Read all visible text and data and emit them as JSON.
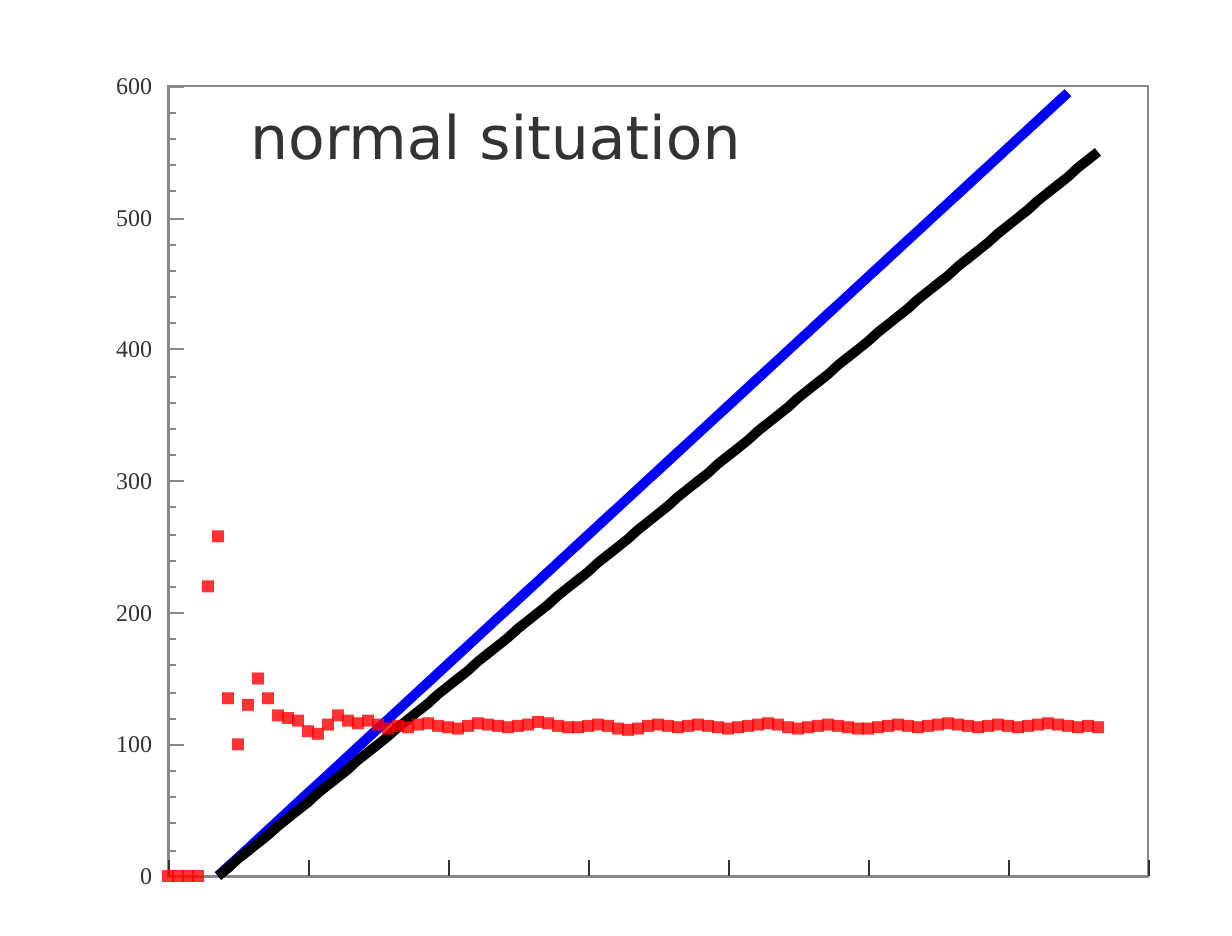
{
  "chart_data": {
    "type": "line",
    "annotations": [
      "normal situation"
    ],
    "categories": [
      null,
      null,
      null,
      null,
      null,
      null,
      null,
      null,
      null,
      null,
      null,
      null,
      null,
      null,
      null,
      null,
      null,
      null,
      null,
      null,
      null,
      null,
      null,
      null,
      null,
      null,
      null,
      null,
      null,
      null,
      null,
      null,
      null,
      null,
      null,
      null,
      null,
      null,
      null,
      null,
      null,
      null,
      null,
      null,
      null,
      null,
      null,
      null,
      null,
      null,
      null,
      null,
      null,
      null,
      null,
      null,
      null,
      null,
      null,
      null,
      null,
      null,
      null,
      null,
      null,
      null,
      null,
      null,
      null,
      null,
      null,
      null,
      null,
      null,
      null,
      null,
      null,
      null,
      null,
      null,
      null,
      null,
      null,
      null,
      null,
      null,
      null,
      null,
      null,
      null,
      null,
      null,
      null,
      null,
      null,
      null,
      null,
      null,
      null
    ],
    "series": [
      {
        "marker": "none",
        "color": "#0000ff",
        "values": [
          null,
          null,
          null,
          null,
          null,
          0,
          7,
          14,
          21,
          28,
          35,
          42,
          49,
          56,
          63,
          70,
          77,
          84,
          91,
          98,
          105,
          112,
          119,
          126,
          133,
          140,
          147,
          154,
          161,
          168,
          175,
          182,
          189,
          196,
          203,
          210,
          217,
          224,
          231,
          238,
          245,
          252,
          259,
          266,
          273,
          280,
          287,
          294,
          301,
          308,
          315,
          322,
          329,
          336,
          343,
          350,
          357,
          364,
          371,
          378,
          385,
          392,
          399,
          406,
          413,
          420,
          427,
          434,
          441,
          448,
          455,
          462,
          469,
          476,
          483,
          490,
          497,
          504,
          511,
          518,
          525,
          532,
          539,
          546,
          553,
          560,
          567,
          574,
          581,
          588,
          595,
          null,
          null,
          null,
          null,
          null,
          null,
          null,
          null
        ]
      },
      {
        "marker": "none",
        "color": "#000000",
        "values": [
          null,
          null,
          null,
          null,
          null,
          0,
          6,
          13,
          19,
          25,
          31,
          38,
          44,
          50,
          56,
          63,
          69,
          75,
          81,
          88,
          94,
          100,
          106,
          113,
          119,
          125,
          131,
          138,
          144,
          150,
          156,
          163,
          169,
          175,
          181,
          188,
          194,
          200,
          206,
          213,
          219,
          225,
          231,
          238,
          244,
          250,
          256,
          263,
          269,
          275,
          281,
          288,
          294,
          300,
          306,
          313,
          319,
          325,
          331,
          338,
          344,
          350,
          356,
          363,
          369,
          375,
          381,
          388,
          394,
          400,
          406,
          413,
          419,
          425,
          431,
          438,
          444,
          450,
          456,
          463,
          469,
          475,
          481,
          488,
          494,
          500,
          506,
          513,
          519,
          525,
          531,
          538,
          544,
          550,
          null,
          null,
          null,
          null,
          null
        ]
      },
      {
        "type": "scatter",
        "marker": "square",
        "color": "#ff0000",
        "values": [
          0,
          0,
          0,
          0,
          220,
          258,
          135,
          100,
          130,
          150,
          135,
          122,
          120,
          118,
          110,
          108,
          115,
          122,
          118,
          116,
          118,
          115,
          112,
          114,
          113,
          115,
          116,
          114,
          113,
          112,
          114,
          116,
          115,
          114,
          113,
          114,
          115,
          117,
          116,
          114,
          113,
          113,
          114,
          115,
          114,
          112,
          111,
          112,
          114,
          115,
          114,
          113,
          114,
          115,
          114,
          113,
          112,
          113,
          114,
          115,
          116,
          115,
          113,
          112,
          113,
          114,
          115,
          114,
          113,
          112,
          112,
          113,
          114,
          115,
          114,
          113,
          114,
          115,
          116,
          115,
          114,
          113,
          114,
          115,
          114,
          113,
          114,
          115,
          116,
          115,
          114,
          113,
          114,
          113,
          null,
          null,
          null,
          null,
          null
        ]
      }
    ],
    "ylim": [
      0,
      600
    ],
    "yticks": [
      0,
      100,
      200,
      300,
      400,
      500,
      600
    ],
    "grid": false,
    "tick_labels": "y"
  }
}
